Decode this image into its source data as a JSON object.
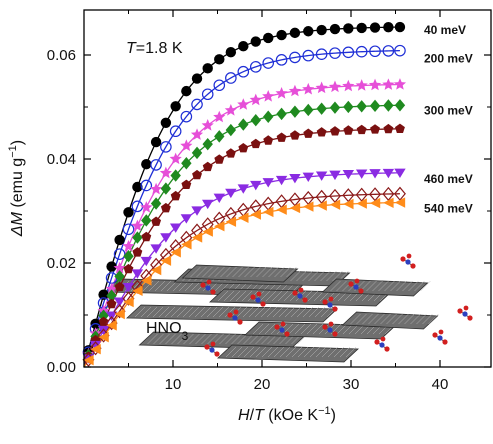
{
  "chart_data": {
    "type": "scatter",
    "title": "",
    "xlabel": {
      "main": "H",
      "sep": "/",
      "main2": "T",
      "unit": " (kOe K",
      "sup": "−1",
      "close": ")"
    },
    "ylabel": {
      "main": "ΔM",
      "unit": " (emu g",
      "sup": "−1",
      "close": ")"
    },
    "xlim": [
      0,
      45
    ],
    "ylim": [
      0,
      0.07
    ],
    "x_ticks": [
      10,
      20,
      30,
      40
    ],
    "y_ticks": [
      0.0,
      0.02,
      0.04,
      0.06
    ],
    "y_tick_labels": [
      "0.00",
      "0.02",
      "0.04",
      "0.06"
    ],
    "grid": false,
    "temperature_label": {
      "var": "T",
      "rest": "=1.8 K"
    },
    "inset_label": {
      "main": "HNO",
      "sub": "3"
    },
    "x_points": [
      0.5,
      1.3,
      2.2,
      3.1,
      4.0,
      5.0,
      6.0,
      7.0,
      8.1,
      9.2,
      10.3,
      11.5,
      12.7,
      13.9,
      15.2,
      16.5,
      17.9,
      19.3,
      20.7,
      22.2,
      23.7,
      25.2,
      26.7,
      28.2,
      29.7,
      31.2,
      32.7,
      34.2,
      35.5
    ],
    "series": [
      {
        "label": "40 meV",
        "ymax": 0.0655,
        "k": 0.098,
        "color": "#000000",
        "marker": "circle-filled",
        "label_anchor_y": 0.0648
      },
      {
        "label": "200 meV",
        "ymax": 0.061,
        "k": 0.093,
        "color": "#1f2fd6",
        "marker": "circle-open",
        "label_anchor_y": 0.0593
      },
      {
        "label": "",
        "ymax": 0.0545,
        "k": 0.091,
        "color": "#e64fd8",
        "marker": "star",
        "label_anchor_y": 0.0532
      },
      {
        "label": "300 meV",
        "ymax": 0.0505,
        "k": 0.09,
        "color": "#1f8a1f",
        "marker": "diamond-filled",
        "label_anchor_y": 0.0493
      },
      {
        "label": "",
        "ymax": 0.046,
        "k": 0.087,
        "color": "#7a1010",
        "marker": "pentagon-filled",
        "label_anchor_y": 0.0445
      },
      {
        "label": "460 meV",
        "ymax": 0.0375,
        "k": 0.087,
        "color": "#8a2be2",
        "marker": "triangle-down",
        "label_anchor_y": 0.0362
      },
      {
        "label": "",
        "ymax": 0.0335,
        "k": 0.083,
        "color": "#8b1a1a",
        "marker": "diamond-open",
        "label_anchor_y": 0.0325
      },
      {
        "label": "540 meV",
        "ymax": 0.0318,
        "k": 0.083,
        "color": "#ff8c1a",
        "marker": "triangle-left",
        "label_anchor_y": 0.0305
      }
    ]
  }
}
